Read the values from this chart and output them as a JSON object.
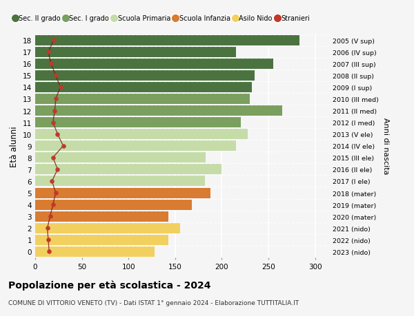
{
  "ages": [
    18,
    17,
    16,
    15,
    14,
    13,
    12,
    11,
    10,
    9,
    8,
    7,
    6,
    5,
    4,
    3,
    2,
    1,
    0
  ],
  "bar_values": [
    283,
    215,
    255,
    235,
    232,
    230,
    265,
    220,
    228,
    215,
    183,
    200,
    182,
    188,
    168,
    143,
    155,
    143,
    128
  ],
  "stranieri_values": [
    20,
    14,
    17,
    22,
    27,
    22,
    21,
    19,
    24,
    30,
    19,
    24,
    18,
    22,
    19,
    16,
    13,
    14,
    15
  ],
  "right_labels": [
    "2005 (V sup)",
    "2006 (IV sup)",
    "2007 (III sup)",
    "2008 (II sup)",
    "2009 (I sup)",
    "2010 (III med)",
    "2011 (II med)",
    "2012 (I med)",
    "2013 (V ele)",
    "2014 (IV ele)",
    "2015 (III ele)",
    "2016 (II ele)",
    "2017 (I ele)",
    "2018 (mater)",
    "2019 (mater)",
    "2020 (mater)",
    "2021 (nido)",
    "2022 (nido)",
    "2023 (nido)"
  ],
  "bar_colors": [
    "#4a7340",
    "#4a7340",
    "#4a7340",
    "#4a7340",
    "#4a7340",
    "#7a9f5e",
    "#7a9f5e",
    "#7a9f5e",
    "#c5dca8",
    "#c5dca8",
    "#c5dca8",
    "#c5dca8",
    "#c5dca8",
    "#d97b30",
    "#d97b30",
    "#d97b30",
    "#f2d060",
    "#f2d060",
    "#f2d060"
  ],
  "legend_labels": [
    "Sec. II grado",
    "Sec. I grado",
    "Scuola Primaria",
    "Scuola Infanzia",
    "Asilo Nido",
    "Stranieri"
  ],
  "legend_colors": [
    "#4a7340",
    "#7a9f5e",
    "#c5dca8",
    "#d97b30",
    "#f2d060",
    "#c0392b"
  ],
  "stranieri_color": "#c0392b",
  "stranieri_line_color": "#7a1010",
  "title": "Popolazione per età scolastica - 2024",
  "subtitle": "COMUNE DI VITTORIO VENETO (TV) - Dati ISTAT 1° gennaio 2024 - Elaborazione TUTTITALIA.IT",
  "ylabel": "Età alunni",
  "right_ylabel": "Anni di nascita",
  "xlim": [
    0,
    315
  ],
  "xticks": [
    0,
    50,
    100,
    150,
    200,
    250,
    300
  ],
  "background_color": "#f5f5f5",
  "grid_color": "#ffffff"
}
